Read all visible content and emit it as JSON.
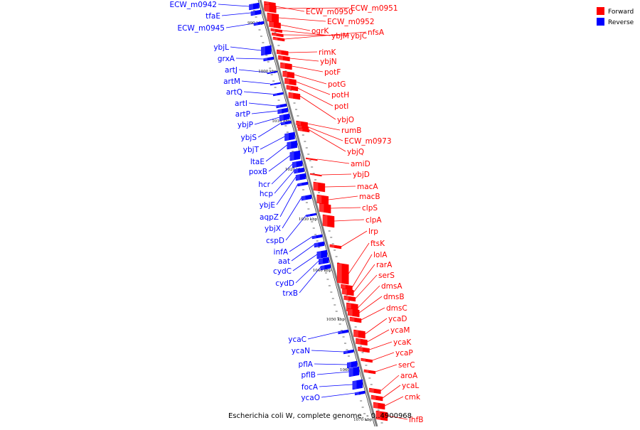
{
  "caption": "Escherichia coli W, complete genome. - 0..4900968",
  "legend": [
    {
      "label": "Forward",
      "color": "#ff0000"
    },
    {
      "label": "Reverse",
      "color": "#0000ff"
    }
  ],
  "colors": {
    "forward": "#ff0000",
    "reverse": "#0000ff",
    "axis": "#808080"
  },
  "ticks": [
    "990 kbp",
    "1000 kbp",
    "1010 kbp",
    "1020 kbp",
    "1030 kbp",
    "1040 kbp",
    "1050 kbp",
    "1060 kbp",
    "1070 kbp"
  ],
  "reverse_genes": [
    "ECW_m0942",
    "tfaE",
    "ECW_m0945",
    "ybjL",
    "grxA",
    "artJ",
    "artM",
    "artQ",
    "artI",
    "artP",
    "ybjP",
    "ybjS",
    "ybjT",
    "ltaE",
    "poxB",
    "hcr",
    "hcp",
    "ybjE",
    "aqpZ",
    "ybjX",
    "cspD",
    "infA",
    "aat",
    "cydC",
    "cydD",
    "trxB",
    "ycaC",
    "ycaN",
    "pflA",
    "pflB",
    "focA",
    "ycaO"
  ],
  "forward_genes": [
    "ECW_m0950",
    "ECW_m0951",
    "ECW_m0952",
    "ogrK",
    "ybjM",
    "ybjC",
    "nfsA",
    "rimK",
    "ybjN",
    "potF",
    "potG",
    "potH",
    "potI",
    "ybjO",
    "rumB",
    "ECW_m0973",
    "ybjQ",
    "amiD",
    "ybjD",
    "macA",
    "macB",
    "clpS",
    "clpA",
    "lrp",
    "ftsK",
    "lolA",
    "rarA",
    "serS",
    "dmsA",
    "dmsB",
    "dmsC",
    "ycaD",
    "ycaM",
    "ycaK",
    "ycaP",
    "serC",
    "aroA",
    "ycaL",
    "cmk",
    "ihfB"
  ]
}
